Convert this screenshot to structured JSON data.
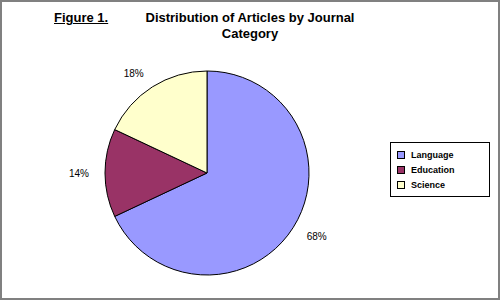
{
  "chart_data": {
    "type": "pie",
    "figure_label": "Figure 1.",
    "title": "Distribution of Articles by Journal Category",
    "categories": [
      "Language",
      "Education",
      "Science"
    ],
    "values": [
      68,
      14,
      18
    ],
    "value_labels": [
      "68%",
      "14%",
      "18%"
    ],
    "colors": [
      "#9999ff",
      "#993366",
      "#ffffcc"
    ],
    "data_labels": true,
    "legend": "right"
  }
}
